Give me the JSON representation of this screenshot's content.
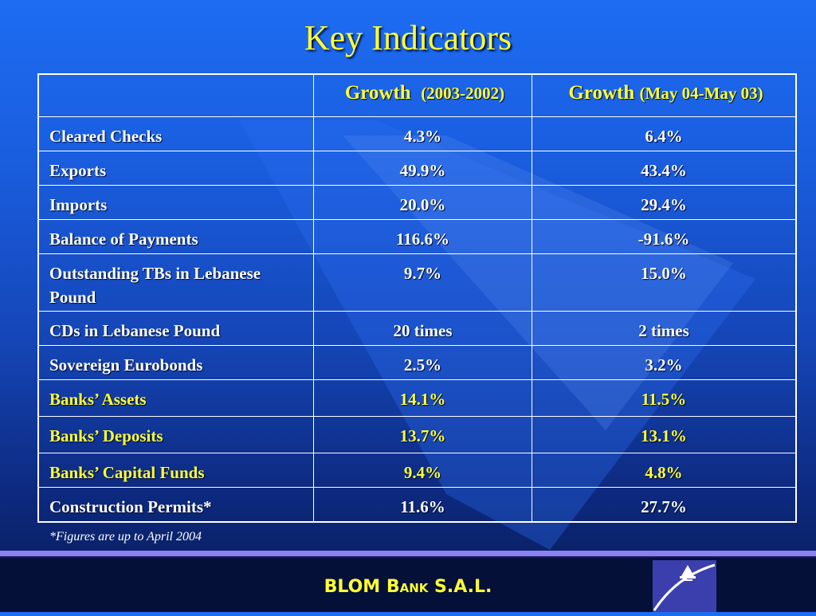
{
  "title": "Key Indicators",
  "table": {
    "headers": [
      {
        "main": "",
        "sub": ""
      },
      {
        "main": "Growth",
        "sub": "(2003-2002)"
      },
      {
        "main": "Growth",
        "sub": "(May 04-May 03)"
      }
    ],
    "rows": [
      {
        "label": "Cleared Checks",
        "v1": "4.3%",
        "v2": "6.4%"
      },
      {
        "label": "Exports",
        "v1": "49.9%",
        "v2": "43.4%"
      },
      {
        "label": "Imports",
        "v1": "20.0%",
        "v2": "29.4%"
      },
      {
        "label": "Balance of Payments",
        "v1": "116.6%",
        "v2": "-91.6%"
      },
      {
        "label": "Outstanding TBs in Lebanese Pound",
        "v1": "9.7%",
        "v2": "15.0%"
      },
      {
        "label": "CDs in Lebanese Pound",
        "v1": "20 times",
        "v2": "2 times"
      },
      {
        "label": "Sovereign Eurobonds",
        "v1": "2.5%",
        "v2": "3.2%"
      },
      {
        "label": "Banks’ Assets",
        "v1": "14.1%",
        "v2": "11.5%"
      },
      {
        "label": "Banks’ Deposits",
        "v1": "13.7%",
        "v2": "13.1%"
      },
      {
        "label": "Banks’ Capital Funds",
        "v1": "9.4%",
        "v2": "4.8%"
      },
      {
        "label": "Construction Permits*",
        "v1": "11.6%",
        "v2": "27.7%"
      }
    ]
  },
  "footnote": "*Figures are up to April 2004",
  "footer": {
    "brand": "BLOM Bank S.A.L."
  },
  "colors": {
    "accent": "#ffff33",
    "text": "#ffffff",
    "footer_bg": "#041038",
    "separator": "#8a82ee"
  }
}
